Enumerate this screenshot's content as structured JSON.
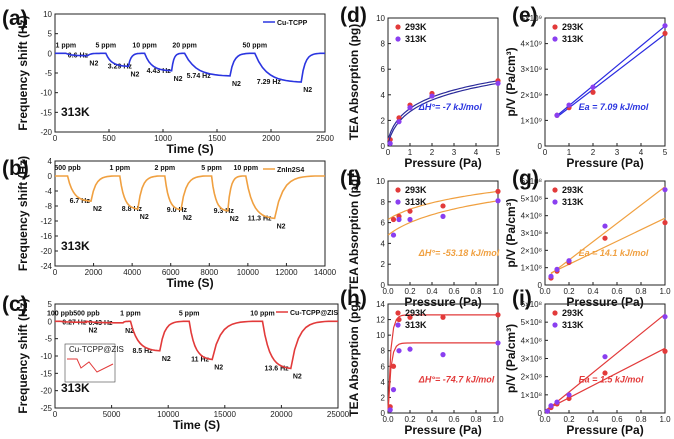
{
  "colors": {
    "blue": "#2b35e0",
    "orange": "#f0a040",
    "red": "#e23a3a",
    "purple": "#8a3ff0",
    "orange_line": "#f0a040"
  },
  "panel_labels": [
    "(a)",
    "(b)",
    "(c)",
    "(d)",
    "(e)",
    "(f)",
    "(g)",
    "(h)",
    "(i)"
  ],
  "chart_data": [
    {
      "panel": "a",
      "type": "line",
      "xlabel": "Time (S)",
      "ylabel": "Frequency shift (Hz)",
      "xlim": [
        0,
        2500
      ],
      "ylim": [
        -20,
        10
      ],
      "xticks": [
        "0",
        "500",
        "1000",
        "1500",
        "2000",
        "2500"
      ],
      "yticks": [
        "10",
        "5",
        "0",
        "-5",
        "-10",
        "-15",
        "-20"
      ],
      "legend": "Cu-TCPP",
      "temp": "313K",
      "steps": [
        {
          "t_on": 100,
          "t_off": 300,
          "drop": -0.6,
          "conc": "1 ppm",
          "shift": "0.6 Hz"
        },
        {
          "t_on": 470,
          "t_off": 680,
          "drop": -3.29,
          "conc": "5 ppm",
          "shift": "3.29 Hz"
        },
        {
          "t_on": 830,
          "t_off": 1080,
          "drop": -4.43,
          "conc": "10 ppm",
          "shift": "4.43 Hz"
        },
        {
          "t_on": 1200,
          "t_off": 1620,
          "drop": -5.74,
          "conc": "20 ppm",
          "shift": "5.74 Hz"
        },
        {
          "t_on": 1850,
          "t_off": 2280,
          "drop": -7.29,
          "conc": "50 ppm",
          "shift": "7.29 Hz"
        }
      ],
      "n2_label": "N2"
    },
    {
      "panel": "b",
      "type": "line",
      "xlabel": "Time (S)",
      "ylabel": "Frequency shift (Hz)",
      "xlim": [
        0,
        15000
      ],
      "ylim": [
        -24,
        4
      ],
      "xticks": [
        "0",
        "2000",
        "4000",
        "6000",
        "8000",
        "10000",
        "12000",
        "14000"
      ],
      "yticks": [
        "4",
        "0",
        "-4",
        "-8",
        "-12",
        "-16",
        "-20",
        "-24"
      ],
      "legend": "ZnIn2S4",
      "temp": "313K",
      "steps": [
        {
          "t_on": 700,
          "t_off": 2000,
          "drop": -6.7,
          "conc": "500 ppb",
          "shift": "6.7 Hz"
        },
        {
          "t_on": 3600,
          "t_off": 4600,
          "drop": -8.8,
          "conc": "1 ppm",
          "shift": "8.8 Hz"
        },
        {
          "t_on": 6100,
          "t_off": 7000,
          "drop": -9.0,
          "conc": "2 ppm",
          "shift": "9.0 Hz"
        },
        {
          "t_on": 8700,
          "t_off": 9600,
          "drop": -9.3,
          "conc": "5 ppm",
          "shift": "9.3 Hz"
        },
        {
          "t_on": 10600,
          "t_off": 12200,
          "drop": -11.3,
          "conc": "10 ppm",
          "shift": "11.3 Hz"
        }
      ],
      "n2_label": "N2"
    },
    {
      "panel": "c",
      "type": "line",
      "xlabel": "Time (S)",
      "ylabel": "Frequency shift (Hz)",
      "xlim": [
        0,
        27000
      ],
      "ylim": [
        -25,
        5
      ],
      "xticks": [
        "0",
        "5000",
        "10000",
        "15000",
        "20000",
        "25000"
      ],
      "yticks": [
        "5",
        "0",
        "-5",
        "-10",
        "-15",
        "-20",
        "-25"
      ],
      "legend": "Cu-TCPP@ZIS",
      "temp": "313K",
      "inset_legend": "Cu-TCPP@ZIS",
      "steps": [
        {
          "t_on": 500,
          "t_off": 3000,
          "drop": -0.27,
          "conc": "100 ppb",
          "shift": "0.27 Hz"
        },
        {
          "t_on": 3000,
          "t_off": 6500,
          "drop": -0.43,
          "conc": "500 ppb",
          "shift": "0.43 Hz"
        },
        {
          "t_on": 7200,
          "t_off": 10000,
          "drop": -8.5,
          "conc": "1 ppm",
          "shift": "8.5 Hz"
        },
        {
          "t_on": 12800,
          "t_off": 15000,
          "drop": -11,
          "conc": "5 ppm",
          "shift": "11 Hz"
        },
        {
          "t_on": 19800,
          "t_off": 22500,
          "drop": -13.6,
          "conc": "10 ppm",
          "shift": "13.6 Hz"
        }
      ],
      "n2_label": "N2"
    },
    {
      "panel": "d",
      "type": "scatter",
      "xlabel": "Pressure (Pa)",
      "ylabel": "TEA Absorption (pg)",
      "xlim": [
        0,
        5
      ],
      "ylim": [
        0,
        10
      ],
      "xticks": [
        "0",
        "1",
        "2",
        "3",
        "4",
        "5"
      ],
      "yticks": [
        "0",
        "2",
        "4",
        "6",
        "8",
        "10"
      ],
      "series": [
        {
          "name": "293K",
          "x": [
            0.1,
            0.5,
            1,
            2,
            5
          ],
          "y": [
            0.5,
            2.2,
            3.2,
            4.1,
            5.1
          ]
        },
        {
          "name": "313K",
          "x": [
            0.1,
            0.5,
            1,
            2,
            5
          ],
          "y": [
            0.2,
            1.9,
            3.0,
            3.9,
            4.9
          ]
        }
      ],
      "annotation": "ΔH°= -7 kJ/mol"
    },
    {
      "panel": "e",
      "type": "scatter",
      "xlabel": "Pressure (Pa)",
      "ylabel": "p/V (Pa/cm³)",
      "xlim": [
        0,
        5
      ],
      "ylim": [
        0,
        5
      ],
      "xticks": [
        "0",
        "1",
        "2",
        "3",
        "4",
        "5"
      ],
      "yticks": [
        "0",
        "1×10⁹",
        "2×10⁹",
        "3×10⁹",
        "4×10⁹",
        "5×10⁹"
      ],
      "series": [
        {
          "name": "293K",
          "x": [
            0.5,
            1,
            2,
            5
          ],
          "y": [
            1.2,
            1.5,
            2.1,
            4.4
          ]
        },
        {
          "name": "313K",
          "x": [
            0.5,
            1,
            2,
            5
          ],
          "y": [
            1.2,
            1.6,
            2.3,
            4.7
          ]
        }
      ],
      "annotation": "Ea = 7.09 kJ/mol"
    },
    {
      "panel": "f",
      "type": "scatter",
      "xlabel": "Pressure (Pa)",
      "ylabel": "TEA Absorption (pg)",
      "xlim": [
        0,
        1
      ],
      "ylim": [
        0,
        10
      ],
      "xticks": [
        "0.0",
        "0.2",
        "0.4",
        "0.6",
        "0.8",
        "1.0"
      ],
      "yticks": [
        "0",
        "2",
        "4",
        "6",
        "8",
        "10"
      ],
      "series": [
        {
          "name": "293K",
          "x": [
            0.05,
            0.1,
            0.2,
            0.5,
            1
          ],
          "y": [
            6.3,
            6.6,
            7.1,
            7.6,
            9.0
          ]
        },
        {
          "name": "313K",
          "x": [
            0.05,
            0.1,
            0.2,
            0.5,
            1
          ],
          "y": [
            4.8,
            6.3,
            6.3,
            6.6,
            8.1
          ]
        }
      ],
      "annotation": "ΔH°= -53.18 kJ/mol"
    },
    {
      "panel": "g",
      "type": "scatter",
      "xlabel": "Pressure (Pa)",
      "ylabel": "p/V (Pa/cm³)",
      "xlim": [
        0,
        1
      ],
      "ylim": [
        0,
        6
      ],
      "xticks": [
        "0.0",
        "0.2",
        "0.4",
        "0.6",
        "0.8",
        "1.0"
      ],
      "yticks": [
        "0",
        "1×10⁸",
        "2×10⁸",
        "3×10⁸",
        "4×10⁸",
        "5×10⁸",
        "6×10⁸"
      ],
      "series": [
        {
          "name": "293K",
          "x": [
            0.05,
            0.1,
            0.2,
            0.5,
            1
          ],
          "y": [
            0.4,
            0.8,
            1.3,
            2.7,
            3.6
          ]
        },
        {
          "name": "313K",
          "x": [
            0.05,
            0.1,
            0.2,
            0.5,
            1
          ],
          "y": [
            0.5,
            0.9,
            1.4,
            3.4,
            5.5
          ]
        }
      ],
      "annotation": "Ea = 14.1 kJ/mol"
    },
    {
      "panel": "h",
      "type": "scatter",
      "xlabel": "Pressure (Pa)",
      "ylabel": "TEA Absorption (pg)",
      "xlim": [
        0,
        1
      ],
      "ylim": [
        0,
        14
      ],
      "xticks": [
        "0.0",
        "0.2",
        "0.4",
        "0.6",
        "0.8",
        "1.0"
      ],
      "yticks": [
        "0",
        "2",
        "4",
        "6",
        "8",
        "10",
        "12",
        "14"
      ],
      "series": [
        {
          "name": "293K",
          "x": [
            0.02,
            0.05,
            0.1,
            0.2,
            0.5,
            1
          ],
          "y": [
            0.8,
            6.0,
            12.0,
            12.3,
            12.3,
            12.6
          ]
        },
        {
          "name": "313K",
          "x": [
            0.02,
            0.05,
            0.1,
            0.2,
            0.5,
            1
          ],
          "y": [
            0.4,
            3.0,
            8.0,
            8.2,
            7.5,
            9.0
          ]
        }
      ],
      "annotation": "ΔH°= -74.7 kJ/mol"
    },
    {
      "panel": "i",
      "type": "scatter",
      "xlabel": "Pressure (Pa)",
      "ylabel": "p/V (Pa/cm³)",
      "xlim": [
        0,
        1
      ],
      "ylim": [
        0,
        6
      ],
      "xticks": [
        "0.0",
        "0.2",
        "0.4",
        "0.6",
        "0.8",
        "1.0"
      ],
      "yticks": [
        "0",
        "1×10⁸",
        "2×10⁸",
        "3×10⁸",
        "4×10⁸",
        "5×10⁸",
        "6×10⁸"
      ],
      "series": [
        {
          "name": "293K",
          "x": [
            0.02,
            0.05,
            0.1,
            0.2,
            0.5,
            1
          ],
          "y": [
            0.1,
            0.3,
            0.5,
            0.8,
            2.2,
            3.4
          ]
        },
        {
          "name": "313K",
          "x": [
            0.02,
            0.05,
            0.1,
            0.2,
            0.5,
            1
          ],
          "y": [
            0.1,
            0.4,
            0.6,
            1.0,
            3.1,
            5.3
          ]
        }
      ],
      "annotation": "Ea = 1.5 kJ/mol"
    }
  ]
}
